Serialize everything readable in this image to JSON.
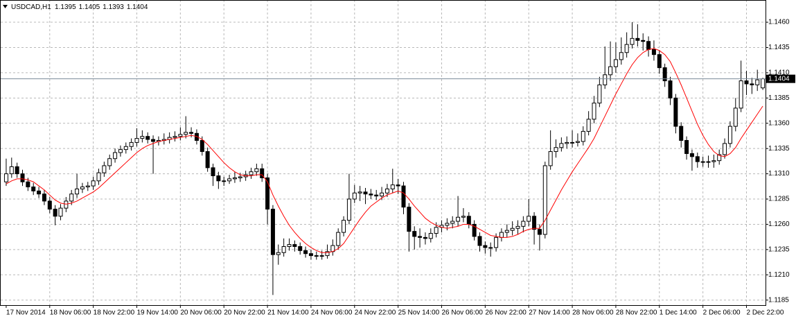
{
  "chart_data": {
    "type": "candlestick",
    "title": "USDCAD,H1",
    "categories": [
      "17 Nov 2014",
      null,
      null,
      null,
      null,
      null,
      null,
      null,
      "18 Nov 06:00",
      null,
      null,
      null,
      null,
      null,
      null,
      null,
      "18 Nov 22:00",
      null,
      null,
      null,
      null,
      null,
      null,
      null,
      "19 Nov 14:00",
      null,
      null,
      null,
      null,
      null,
      null,
      null,
      "20 Nov 06:00",
      null,
      null,
      null,
      null,
      null,
      null,
      null,
      "20 Nov 22:00",
      null,
      null,
      null,
      null,
      null,
      null,
      null,
      "21 Nov 14:00",
      null,
      null,
      null,
      null,
      null,
      null,
      null,
      "24 Nov 06:00",
      null,
      null,
      null,
      null,
      null,
      null,
      null,
      "24 Nov 22:00",
      null,
      null,
      null,
      null,
      null,
      null,
      null,
      "25 Nov 14:00",
      null,
      null,
      null,
      null,
      null,
      null,
      null,
      "26 Nov 06:00",
      null,
      null,
      null,
      null,
      null,
      null,
      null,
      "26 Nov 22:00",
      null,
      null,
      null,
      null,
      null,
      null,
      null,
      "27 Nov 14:00",
      null,
      null,
      null,
      null,
      null,
      null,
      null,
      "28 Nov 06:00",
      null,
      null,
      null,
      null,
      null,
      null,
      null,
      "28 Nov 22:00",
      null,
      null,
      null,
      null,
      null,
      null,
      null,
      "1 Dec 14:00",
      null,
      null,
      null,
      null,
      null,
      null,
      null,
      "2 Dec 06:00",
      null,
      null,
      null,
      null,
      null,
      null,
      null,
      "2 Dec 22:00",
      null,
      null,
      null
    ],
    "open": [
      1.1302,
      1.131,
      1.1317,
      1.131,
      1.1302,
      1.1297,
      1.1293,
      1.129,
      1.1283,
      1.1275,
      1.1268,
      1.1276,
      1.1283,
      1.129,
      1.1295,
      1.1297,
      1.1298,
      1.1303,
      1.1311,
      1.1318,
      1.1325,
      1.1331,
      1.1334,
      1.1337,
      1.1341,
      1.1345,
      1.1347,
      1.1344,
      1.1342,
      1.1343,
      1.1344,
      1.1346,
      1.1347,
      1.1349,
      1.1351,
      1.135,
      1.1343,
      1.1332,
      1.1316,
      1.1308,
      1.1303,
      1.1303,
      1.1305,
      1.1306,
      1.1307,
      1.1309,
      1.1312,
      1.1315,
      1.1306,
      1.1275,
      1.123,
      1.1232,
      1.1238,
      1.124,
      1.1238,
      1.1234,
      1.1231,
      1.1229,
      1.1229,
      1.1229,
      1.1233,
      1.1239,
      1.1252,
      1.1264,
      1.1285,
      1.1291,
      1.1292,
      1.129,
      1.1289,
      1.1288,
      1.1291,
      1.1295,
      1.1299,
      1.1298,
      1.1277,
      1.1253,
      1.1248,
      1.1247,
      1.1246,
      1.1251,
      1.1257,
      1.1259,
      1.1261,
      1.1263,
      1.1267,
      1.1268,
      1.126,
      1.1248,
      1.1239,
      1.1237,
      1.1237,
      1.1247,
      1.1252,
      1.1254,
      1.1256,
      1.1258,
      1.1263,
      1.1268,
      1.1255,
      1.125,
      1.1318,
      1.1332,
      1.1336,
      1.134,
      1.1341,
      1.1341,
      1.1342,
      1.1352,
      1.1364,
      1.138,
      1.1398,
      1.1408,
      1.1416,
      1.1423,
      1.143,
      1.1438,
      1.1444,
      1.1442,
      1.1441,
      1.1433,
      1.1428,
      1.1415,
      1.1402,
      1.1385,
      1.1357,
      1.1343,
      1.133,
      1.1327,
      1.1322,
      1.1322,
      1.1322,
      1.1323,
      1.1329,
      1.134,
      1.1357,
      1.1375,
      1.1402,
      1.1399,
      1.1398,
      1.1395
    ],
    "high": [
      1.1325,
      1.1326,
      1.1321,
      1.1314,
      1.1306,
      1.1301,
      1.1297,
      1.1294,
      1.1287,
      1.1279,
      1.128,
      1.1287,
      1.1294,
      1.131,
      1.1301,
      1.1302,
      1.1307,
      1.1315,
      1.1322,
      1.1329,
      1.1335,
      1.1338,
      1.1341,
      1.1345,
      1.1355,
      1.1353,
      1.1351,
      1.1348,
      1.1347,
      1.135,
      1.1351,
      1.1352,
      1.1356,
      1.1367,
      1.1356,
      1.1354,
      1.1347,
      1.1336,
      1.132,
      1.1312,
      1.1307,
      1.1309,
      1.1312,
      1.1311,
      1.1313,
      1.1316,
      1.132,
      1.132,
      1.131,
      1.1279,
      1.124,
      1.1246,
      1.1246,
      1.1244,
      1.1242,
      1.1238,
      1.1235,
      1.1233,
      1.1234,
      1.124,
      1.1245,
      1.1256,
      1.1268,
      1.131,
      1.1299,
      1.1298,
      1.1296,
      1.1295,
      1.1294,
      1.1297,
      1.13,
      1.1315,
      1.1305,
      1.1302,
      1.1281,
      1.1258,
      1.1256,
      1.1252,
      1.1256,
      1.1262,
      1.1264,
      1.1266,
      1.1268,
      1.1288,
      1.1276,
      1.1272,
      1.1264,
      1.1252,
      1.1243,
      1.1242,
      1.1251,
      1.1256,
      1.126,
      1.1263,
      1.1264,
      1.1268,
      1.1285,
      1.1272,
      1.126,
      1.1322,
      1.1353,
      1.1344,
      1.1346,
      1.1347,
      1.1353,
      1.135,
      1.1357,
      1.1372,
      1.1387,
      1.1406,
      1.1436,
      1.1441,
      1.144,
      1.1445,
      1.145,
      1.146,
      1.1458,
      1.1449,
      1.1446,
      1.1442,
      1.1432,
      1.1419,
      1.1406,
      1.1389,
      1.1361,
      1.1347,
      1.1334,
      1.1331,
      1.1327,
      1.1328,
      1.1329,
      1.1334,
      1.1345,
      1.1362,
      1.1385,
      1.1422,
      1.1412,
      1.1405,
      1.1413,
      1.1405
    ],
    "low": [
      1.1298,
      1.1306,
      1.1306,
      1.1298,
      1.1293,
      1.1289,
      1.1286,
      1.1279,
      1.1271,
      1.1259,
      1.1264,
      1.1272,
      1.1279,
      1.1286,
      1.1291,
      1.1293,
      1.1294,
      1.1299,
      1.1307,
      1.1314,
      1.1321,
      1.1327,
      1.133,
      1.1333,
      1.1337,
      1.1341,
      1.134,
      1.131,
      1.1338,
      1.1339,
      1.134,
      1.1342,
      1.1343,
      1.1345,
      1.1346,
      1.1339,
      1.1328,
      1.1312,
      1.1298,
      1.1295,
      1.1298,
      1.13,
      1.1301,
      1.1302,
      1.1303,
      1.1305,
      1.1308,
      1.1302,
      1.126,
      1.119,
      1.122,
      1.1228,
      1.1234,
      1.1233,
      1.123,
      1.1227,
      1.1225,
      1.1225,
      1.1225,
      1.1226,
      1.1229,
      1.1235,
      1.1248,
      1.126,
      1.1281,
      1.1283,
      1.128,
      1.1285,
      1.1284,
      1.1284,
      1.1287,
      1.1291,
      1.129,
      1.127,
      1.1233,
      1.1235,
      1.1237,
      1.124,
      1.1242,
      1.1247,
      1.1252,
      1.1254,
      1.1256,
      1.1258,
      1.1262,
      1.1256,
      1.1244,
      1.1233,
      1.1231,
      1.1228,
      1.1233,
      1.1243,
      1.1247,
      1.1249,
      1.125,
      1.1252,
      1.1258,
      1.124,
      1.1234,
      1.1246,
      1.1314,
      1.1326,
      1.1332,
      1.1335,
      1.1336,
      1.1337,
      1.1338,
      1.1348,
      1.136,
      1.1376,
      1.1394,
      1.1402,
      1.141,
      1.1418,
      1.1425,
      1.1434,
      1.1436,
      1.1432,
      1.1426,
      1.1422,
      1.1409,
      1.1396,
      1.1378,
      1.135,
      1.1336,
      1.1324,
      1.1313,
      1.1316,
      1.1317,
      1.1316,
      1.1316,
      1.1319,
      1.1325,
      1.1336,
      1.1352,
      1.1371,
      1.1388,
      1.1389,
      1.1392,
      1.1393
    ],
    "close": [
      1.131,
      1.1317,
      1.131,
      1.1302,
      1.1297,
      1.1293,
      1.129,
      1.1283,
      1.1275,
      1.1268,
      1.1276,
      1.1283,
      1.129,
      1.1295,
      1.1297,
      1.1298,
      1.1303,
      1.1311,
      1.1318,
      1.1325,
      1.1331,
      1.1334,
      1.1337,
      1.1341,
      1.1345,
      1.1347,
      1.1344,
      1.1342,
      1.1343,
      1.1344,
      1.1346,
      1.1347,
      1.1349,
      1.1351,
      1.135,
      1.1343,
      1.1332,
      1.1316,
      1.1308,
      1.1303,
      1.1303,
      1.1305,
      1.1306,
      1.1307,
      1.1309,
      1.1312,
      1.1315,
      1.1306,
      1.1275,
      1.123,
      1.1232,
      1.1238,
      1.124,
      1.1238,
      1.1234,
      1.1231,
      1.1229,
      1.1229,
      1.1229,
      1.1233,
      1.1239,
      1.1252,
      1.1264,
      1.1285,
      1.1291,
      1.1292,
      1.129,
      1.1289,
      1.1288,
      1.1291,
      1.1295,
      1.1299,
      1.1298,
      1.1277,
      1.1253,
      1.1248,
      1.1247,
      1.1246,
      1.1251,
      1.1257,
      1.1259,
      1.1261,
      1.1263,
      1.1267,
      1.1268,
      1.126,
      1.1248,
      1.1239,
      1.1237,
      1.1237,
      1.1247,
      1.1252,
      1.1254,
      1.1256,
      1.1258,
      1.1263,
      1.1268,
      1.1255,
      1.125,
      1.1318,
      1.1332,
      1.1336,
      1.134,
      1.1341,
      1.1341,
      1.1342,
      1.1352,
      1.1364,
      1.138,
      1.1398,
      1.1408,
      1.1416,
      1.1423,
      1.143,
      1.1438,
      1.1444,
      1.1442,
      1.1441,
      1.1433,
      1.1428,
      1.1415,
      1.1402,
      1.1385,
      1.1357,
      1.1343,
      1.133,
      1.1327,
      1.1322,
      1.1322,
      1.1322,
      1.1323,
      1.1329,
      1.134,
      1.1357,
      1.1375,
      1.1402,
      1.1399,
      1.1398,
      1.1403,
      1.1404
    ],
    "ma": {
      "color": "#ff0000",
      "values": [
        1.13,
        1.1303,
        1.1305,
        1.1305,
        1.1304,
        1.1302,
        1.1298,
        1.1294,
        1.1289,
        1.1284,
        1.1281,
        1.128,
        1.1281,
        1.1283,
        1.1286,
        1.1289,
        1.1292,
        1.1296,
        1.1301,
        1.1306,
        1.1311,
        1.1316,
        1.1321,
        1.1326,
        1.1331,
        1.1335,
        1.1338,
        1.134,
        1.1342,
        1.1343,
        1.1344,
        1.1345,
        1.1346,
        1.1347,
        1.1348,
        1.1347,
        1.1344,
        1.1339,
        1.1333,
        1.1327,
        1.1321,
        1.1316,
        1.1312,
        1.1309,
        1.1308,
        1.1308,
        1.1309,
        1.1309,
        1.1302,
        1.1289,
        1.1278,
        1.1268,
        1.1259,
        1.1252,
        1.1246,
        1.1241,
        1.1237,
        1.1234,
        1.1232,
        1.1232,
        1.1233,
        1.1236,
        1.1241,
        1.1249,
        1.1257,
        1.1265,
        1.1272,
        1.1278,
        1.1282,
        1.1286,
        1.1289,
        1.1291,
        1.1293,
        1.1291,
        1.1285,
        1.1278,
        1.1272,
        1.1266,
        1.1262,
        1.1259,
        1.1257,
        1.1256,
        1.1257,
        1.1258,
        1.126,
        1.126,
        1.1258,
        1.1255,
        1.1252,
        1.1249,
        1.1248,
        1.1247,
        1.1247,
        1.1248,
        1.125,
        1.1253,
        1.1255,
        1.1256,
        1.1256,
        1.1264,
        1.1274,
        1.1284,
        1.1294,
        1.1303,
        1.1312,
        1.132,
        1.1328,
        1.1336,
        1.1345,
        1.1356,
        1.1367,
        1.1378,
        1.1389,
        1.1399,
        1.1409,
        1.1418,
        1.1425,
        1.143,
        1.1433,
        1.1434,
        1.1432,
        1.1428,
        1.1421,
        1.141,
        1.1398,
        1.1385,
        1.1372,
        1.1359,
        1.1348,
        1.1339,
        1.1332,
        1.1328,
        1.1327,
        1.133,
        1.1336,
        1.1345,
        1.1353,
        1.1361,
        1.1369,
        1.1377
      ]
    },
    "up_color": "#ffffff",
    "down_color": "#000000",
    "wick_color": "#000000",
    "grid_color": "#b8b8b8",
    "ylim": [
      1.118,
      1.1482
    ],
    "yticks": [
      1.1185,
      {
        "value": 1.121,
        "label": "1.1210"
      },
      1.1235,
      {
        "value": 1.126,
        "label": "1.1260"
      },
      1.1285,
      {
        "value": 1.131,
        "label": "1.1310"
      },
      1.1335,
      {
        "value": 1.136,
        "label": "1.1360"
      },
      1.1385,
      {
        "value": 1.141,
        "label": "1.1410"
      },
      1.1435,
      {
        "value": 1.146,
        "label": "1.1460"
      }
    ],
    "grid": true
  }
}
